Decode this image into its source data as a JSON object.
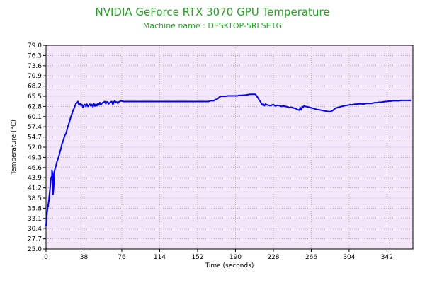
{
  "chart_data": {
    "type": "line",
    "title": "NVIDIA GeForce RTX 3070 GPU Temperature",
    "subtitle": "Machine name : DESKTOP-5RLSE1G",
    "xlabel": "Time (seconds)",
    "ylabel": "Temperature (°C)",
    "xlim": [
      0,
      368
    ],
    "ylim": [
      25.0,
      79.0
    ],
    "x_ticks": [
      0,
      38,
      76,
      114,
      152,
      190,
      228,
      266,
      304,
      342
    ],
    "y_ticks": [
      "25.0",
      "27.7",
      "30.4",
      "33.1",
      "35.8",
      "38.5",
      "41.2",
      "43.9",
      "46.6",
      "49.3",
      "52.0",
      "54.7",
      "57.4",
      "60.1",
      "62.8",
      "65.5",
      "68.2",
      "70.9",
      "73.6",
      "76.3",
      "79.0"
    ],
    "grid": true,
    "colors": {
      "background": "#f3e6f8",
      "grid": "#888888",
      "line": "#0000ee",
      "title": "#2aa02a"
    },
    "series": [
      {
        "x": [
          0,
          1,
          2,
          2,
          3,
          4,
          5,
          6,
          6,
          7,
          7,
          8,
          8,
          9,
          10,
          11,
          12,
          13,
          14,
          15,
          16,
          17,
          18,
          19,
          20,
          21,
          22,
          23,
          24,
          25,
          26,
          27,
          28,
          29,
          30,
          31,
          32,
          33,
          34,
          35,
          36,
          37,
          38,
          39,
          40,
          41,
          42,
          44,
          45,
          46,
          47,
          48,
          49,
          50,
          51,
          52,
          53,
          54,
          55,
          56,
          57,
          58,
          59,
          60,
          61,
          62,
          63,
          64,
          65,
          66,
          67,
          68,
          69,
          70,
          71,
          72,
          73,
          74,
          75,
          76,
          78,
          80,
          85,
          90,
          95,
          100,
          105,
          110,
          114,
          120,
          125,
          127,
          128,
          129,
          130,
          131,
          132,
          133,
          134,
          135,
          136,
          137,
          138,
          140,
          142,
          145,
          150,
          152,
          153,
          154,
          155,
          156,
          157,
          158,
          159,
          160,
          161,
          162,
          163,
          165,
          168,
          170,
          172,
          174,
          176,
          180,
          182,
          185,
          188,
          190,
          192,
          193,
          195,
          200,
          205,
          210,
          212,
          213,
          214,
          215,
          216,
          217,
          218,
          219,
          220,
          222,
          225,
          228,
          230,
          232,
          234,
          236,
          238,
          240,
          242,
          244,
          246,
          248,
          250,
          252,
          254,
          255,
          256,
          257,
          258,
          259,
          260,
          262,
          265,
          268,
          270,
          272,
          274,
          276,
          278,
          280,
          282,
          284,
          286,
          288,
          290,
          295,
          300,
          302,
          304,
          305,
          306,
          308,
          310,
          312,
          314,
          316,
          318,
          320,
          322,
          324,
          326,
          328,
          330,
          332,
          334,
          336,
          338,
          340,
          342,
          344,
          346,
          348,
          350,
          352,
          354,
          356,
          358,
          360,
          362,
          364,
          366
        ],
        "y": [
          31.0,
          34.6,
          36.7,
          36.2,
          38.2,
          40.9,
          43.8,
          44.4,
          45.9,
          43.9,
          39.5,
          42.5,
          45.2,
          46.2,
          47.1,
          48.2,
          48.9,
          49.7,
          50.8,
          51.6,
          52.9,
          53.5,
          54.4,
          55.2,
          55.6,
          56.6,
          57.6,
          58.3,
          59.2,
          60.1,
          60.8,
          61.7,
          62.2,
          62.9,
          63.6,
          63.7,
          64.1,
          63.2,
          63.6,
          63.1,
          63.3,
          62.6,
          63.2,
          63.3,
          62.8,
          63.4,
          62.8,
          63.4,
          62.9,
          63.3,
          62.7,
          63.5,
          62.9,
          63.4,
          63.0,
          63.6,
          63.2,
          63.8,
          63.2,
          63.6,
          63.8,
          63.9,
          64.1,
          63.5,
          64.0,
          63.9,
          63.5,
          63.8,
          64.0,
          64.1,
          63.3,
          63.9,
          64.4,
          63.8,
          64.0,
          63.6,
          64.0,
          64.1,
          64.3,
          64.2,
          64.1,
          64.1,
          64.1,
          64.1,
          64.1,
          64.1,
          64.1,
          64.1,
          64.1,
          64.1,
          64.1,
          64.1,
          64.1,
          64.1,
          64.1,
          64.1,
          64.1,
          64.1,
          64.1,
          64.1,
          64.1,
          64.1,
          64.1,
          64.1,
          64.1,
          64.1,
          64.1,
          64.1,
          64.1,
          64.1,
          64.1,
          64.1,
          64.1,
          64.1,
          64.1,
          64.1,
          64.1,
          64.1,
          64.1,
          64.3,
          64.3,
          64.6,
          64.8,
          65.3,
          65.5,
          65.5,
          65.6,
          65.6,
          65.6,
          65.6,
          65.6,
          65.7,
          65.7,
          65.8,
          66.0,
          66.0,
          65.3,
          64.9,
          64.4,
          64.1,
          63.6,
          63.2,
          63.4,
          63.0,
          63.4,
          63.2,
          63.0,
          63.3,
          62.9,
          63.1,
          63.0,
          62.8,
          62.9,
          62.8,
          62.7,
          62.5,
          62.6,
          62.4,
          62.3,
          62.0,
          61.8,
          62.5,
          61.9,
          62.8,
          62.6,
          63.0,
          62.8,
          62.7,
          62.5,
          62.3,
          62.1,
          62.0,
          61.9,
          61.8,
          61.7,
          61.6,
          61.5,
          61.4,
          61.5,
          61.8,
          62.3,
          62.7,
          63.0,
          63.1,
          63.2,
          63.3,
          63.2,
          63.3,
          63.4,
          63.4,
          63.5,
          63.5,
          63.4,
          63.5,
          63.6,
          63.6,
          63.6,
          63.7,
          63.8,
          63.8,
          63.9,
          63.9,
          64.0,
          64.1,
          64.1,
          64.2,
          64.2,
          64.3,
          64.3,
          64.3,
          64.3,
          64.4,
          64.4,
          64.4,
          64.4,
          64.4,
          64.4
        ]
      }
    ]
  }
}
